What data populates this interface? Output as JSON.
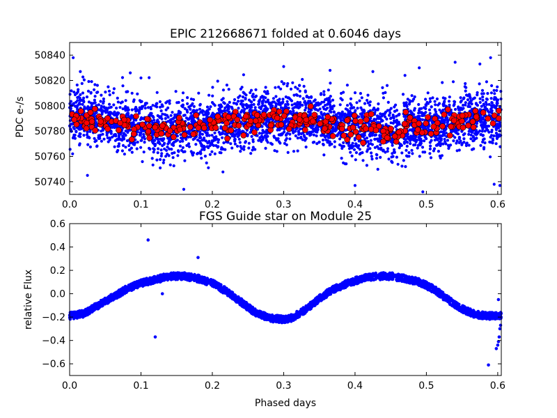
{
  "chart_data": [
    {
      "type": "scatter",
      "title": "EPIC 212668671 folded at 0.6046 days",
      "xlabel": "",
      "ylabel": "PDC e-/s",
      "xlim": [
        0.0,
        0.605
      ],
      "ylim": [
        50730,
        50850
      ],
      "xticks": [
        "0.0",
        "0.1",
        "0.2",
        "0.3",
        "0.4",
        "0.5",
        "0.6"
      ],
      "yticks": [
        "50740",
        "50760",
        "50780",
        "50800",
        "50820",
        "50840"
      ],
      "grid": false,
      "series": [
        {
          "color": "#0000ff",
          "marker": "small-dot",
          "count": 3600,
          "x_range": [
            0.0,
            0.605
          ],
          "center": 50786,
          "modulation": "phases 0.1 and 0.42: low (~50781); phase 0.3: high (~50792)",
          "spread_sd": 11,
          "notable_outliers": [
            [
              0.005,
              50838
            ],
            [
              0.015,
              50827
            ],
            [
              0.025,
              50745
            ],
            [
              0.085,
              50826
            ],
            [
              0.1,
              50822
            ],
            [
              0.16,
              50734
            ],
            [
              0.3,
              50831
            ],
            [
              0.365,
              50828
            ],
            [
              0.425,
              50827
            ],
            [
              0.445,
              50816
            ],
            [
              0.4,
              50737
            ],
            [
              0.47,
              50824
            ],
            [
              0.49,
              50830
            ],
            [
              0.495,
              50732
            ],
            [
              0.575,
              50833
            ],
            [
              0.59,
              50838
            ],
            [
              0.595,
              50738
            ],
            [
              0.603,
              50737
            ]
          ]
        },
        {
          "color": "#ff0000",
          "marker": "large-dot",
          "count": 300,
          "x_range": [
            0.0,
            0.605
          ],
          "center": 50786,
          "spread_sd": 4.5
        }
      ]
    },
    {
      "type": "scatter",
      "title": "FGS Guide star on Module 25",
      "xlabel": "Phased days",
      "ylabel": "relative Flux",
      "xlim": [
        0.0,
        0.605
      ],
      "ylim": [
        -0.7,
        0.6
      ],
      "xticks": [
        "0.0",
        "0.1",
        "0.2",
        "0.3",
        "0.4",
        "0.5",
        "0.6"
      ],
      "yticks": [
        "−0.6",
        "−0.4",
        "−0.2",
        "0.0",
        "0.2",
        "0.4",
        "0.6"
      ],
      "grid": false,
      "series": [
        {
          "color": "#0000ff",
          "marker": "dot",
          "curve_points": [
            [
              0.0,
              -0.19
            ],
            [
              0.02,
              -0.17
            ],
            [
              0.04,
              -0.1
            ],
            [
              0.06,
              -0.03
            ],
            [
              0.08,
              0.04
            ],
            [
              0.1,
              0.09
            ],
            [
              0.12,
              0.12
            ],
            [
              0.14,
              0.15
            ],
            [
              0.16,
              0.15
            ],
            [
              0.18,
              0.13
            ],
            [
              0.2,
              0.09
            ],
            [
              0.22,
              0.02
            ],
            [
              0.24,
              -0.07
            ],
            [
              0.26,
              -0.16
            ],
            [
              0.28,
              -0.21
            ],
            [
              0.3,
              -0.22
            ],
            [
              0.31,
              -0.21
            ],
            [
              0.33,
              -0.14
            ],
            [
              0.35,
              -0.04
            ],
            [
              0.37,
              0.04
            ],
            [
              0.39,
              0.09
            ],
            [
              0.41,
              0.13
            ],
            [
              0.43,
              0.15
            ],
            [
              0.45,
              0.15
            ],
            [
              0.47,
              0.13
            ],
            [
              0.49,
              0.1
            ],
            [
              0.51,
              0.04
            ],
            [
              0.53,
              -0.05
            ],
            [
              0.55,
              -0.13
            ],
            [
              0.57,
              -0.18
            ],
            [
              0.59,
              -0.19
            ],
            [
              0.605,
              -0.19
            ]
          ],
          "band_halfwidth": 0.03,
          "outliers": [
            [
              0.11,
              0.46
            ],
            [
              0.12,
              -0.37
            ],
            [
              0.13,
              0.0
            ],
            [
              0.18,
              0.31
            ],
            [
              0.587,
              -0.61
            ],
            [
              0.598,
              -0.47
            ],
            [
              0.6,
              -0.44
            ],
            [
              0.601,
              -0.41
            ],
            [
              0.602,
              -0.37
            ],
            [
              0.603,
              -0.3
            ],
            [
              0.604,
              -0.27
            ],
            [
              0.601,
              -0.05
            ]
          ]
        }
      ]
    }
  ]
}
